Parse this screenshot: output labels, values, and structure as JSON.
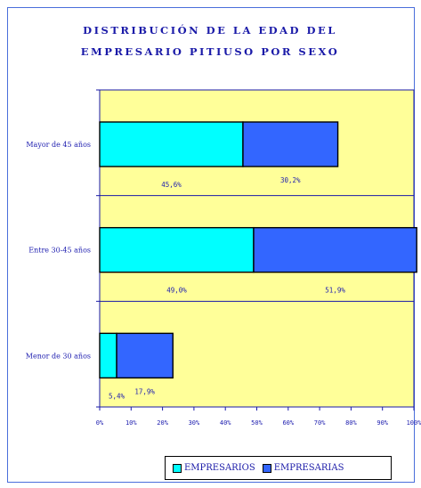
{
  "chart_data": {
    "type": "bar",
    "orientation": "horizontal",
    "stacked": true,
    "title_lines": [
      "DISTRIBUCIÓN DE LA EDAD DEL",
      "EMPRESARIO PITIUSO POR SEXO"
    ],
    "categories": [
      "Mayor de 45 años",
      "Entre 30-45 años",
      "Menor de 30 años"
    ],
    "series": [
      {
        "name": "EMPRESARIOS",
        "values": [
          45.6,
          49.0,
          5.4
        ],
        "labels": [
          "45,6%",
          "49,0%",
          "5,4%"
        ],
        "color": "#00ffff"
      },
      {
        "name": "EMPRESARIAS",
        "values": [
          30.2,
          51.9,
          17.9
        ],
        "labels": [
          "30,2%",
          "51,9%",
          "17,9%"
        ],
        "color": "#3366ff"
      }
    ],
    "x_ticks": [
      "0%",
      "10%",
      "20%",
      "30%",
      "40%",
      "50%",
      "60%",
      "70%",
      "80%",
      "90%",
      "100%"
    ],
    "xlim": [
      0,
      100
    ],
    "legend_position": "bottom",
    "plot_background": "#ffff99",
    "text_color": "#2020b0"
  }
}
